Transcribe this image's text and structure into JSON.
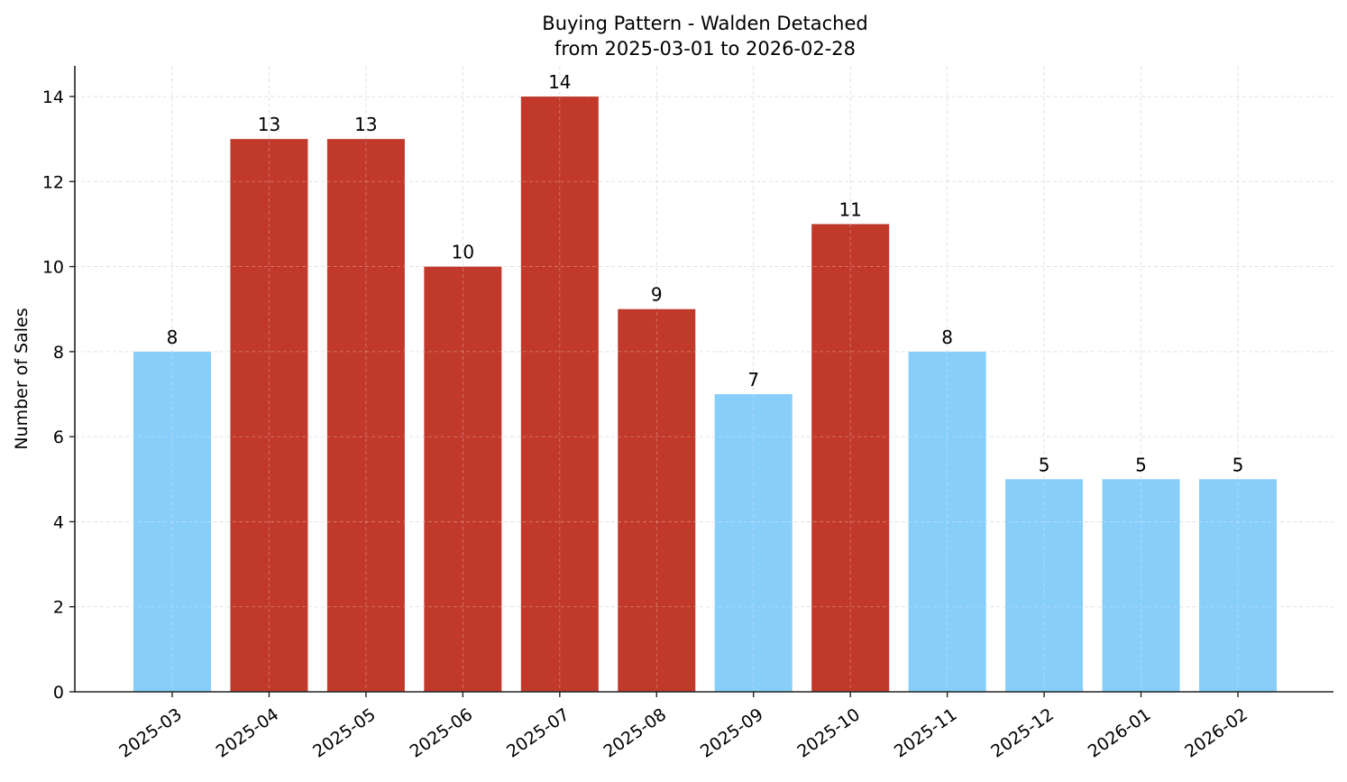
{
  "chart_data": {
    "type": "bar",
    "title": "Buying Pattern - Walden Detached",
    "subtitle": "from 2025-03-01 to 2026-02-28",
    "xlabel": "",
    "ylabel": "Number of Sales",
    "categories": [
      "2025-03",
      "2025-04",
      "2025-05",
      "2025-06",
      "2025-07",
      "2025-08",
      "2025-09",
      "2025-10",
      "2025-11",
      "2025-12",
      "2026-01",
      "2026-02"
    ],
    "values": [
      8,
      13,
      13,
      10,
      14,
      9,
      7,
      11,
      8,
      5,
      5,
      5
    ],
    "bar_colors": [
      "#87CEFA",
      "#C0392B",
      "#C0392B",
      "#C0392B",
      "#C0392B",
      "#C0392B",
      "#87CEFA",
      "#C0392B",
      "#87CEFA",
      "#87CEFA",
      "#87CEFA",
      "#87CEFA"
    ],
    "data_labels": [
      "8",
      "13",
      "13",
      "10",
      "14",
      "9",
      "7",
      "11",
      "8",
      "5",
      "5",
      "5"
    ],
    "ylim": [
      0,
      14.7
    ],
    "yticks": [
      0,
      2,
      4,
      6,
      8,
      10,
      12,
      14
    ],
    "xtick_rotation": 35,
    "grid": true,
    "grid_style": "dashed",
    "legend": null
  },
  "colors": {
    "high": "#C0392B",
    "low": "#87CEFA",
    "grid": "#cccccc",
    "axis": "#222222"
  }
}
